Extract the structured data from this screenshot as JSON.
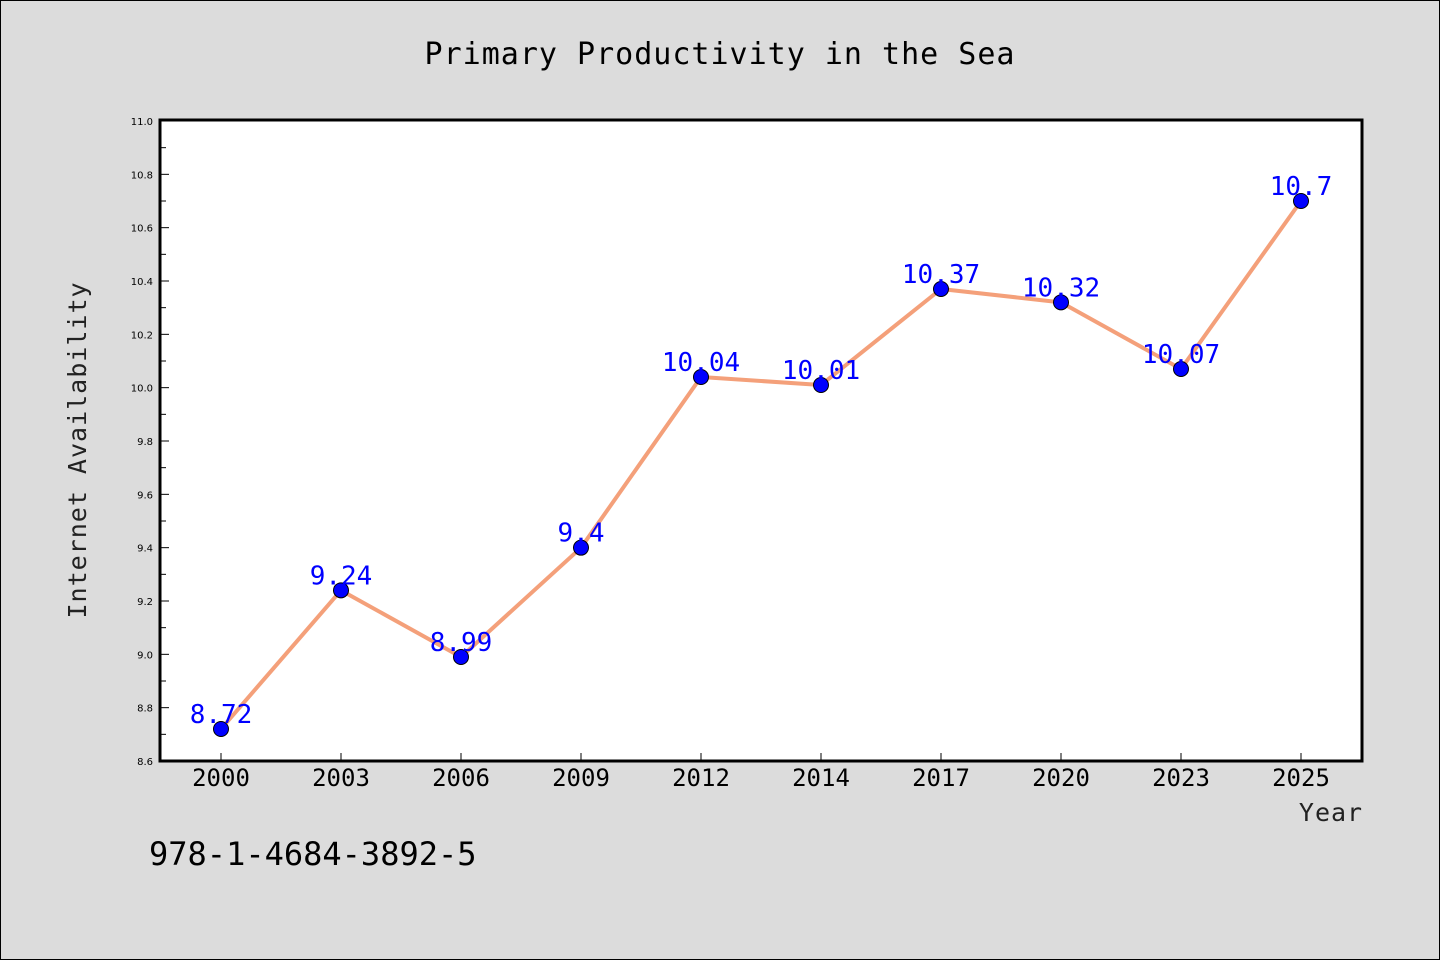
{
  "chart_data": {
    "type": "line",
    "title": "Primary Productivity in the Sea",
    "xlabel": "Year",
    "ylabel": "Internet Availability",
    "categories": [
      "2000",
      "2003",
      "2006",
      "2009",
      "2012",
      "2014",
      "2017",
      "2020",
      "2023",
      "2025"
    ],
    "series": [
      {
        "values": [
          8.72,
          9.24,
          8.99,
          9.4,
          10.04,
          10.01,
          10.37,
          10.32,
          10.07,
          10.7
        ],
        "data_labels": [
          "8.72",
          "9.24",
          "8.99",
          "9.4",
          "10.04",
          "10.01",
          "10.37",
          "10.32",
          "10.07",
          "10.7"
        ],
        "line_color": "#f4a07a",
        "marker_color": "#0000ff"
      }
    ],
    "ylim": [
      8.6,
      11.0
    ],
    "yticks": [
      "8.6",
      "8.8",
      "9.0",
      "9.2",
      "9.4",
      "9.6",
      "9.8",
      "10.0",
      "10.2",
      "10.4",
      "10.6",
      "10.8",
      "11.0"
    ],
    "grid": false,
    "legend": "none"
  },
  "annotation": {
    "isbn": "978-1-4684-3892-5"
  },
  "colors": {
    "figure_background": "#dcdcdc",
    "plot_background": "#ffffff",
    "line": "#f4a07a",
    "marker": "#0000ff",
    "data_label": "#0000ff"
  }
}
